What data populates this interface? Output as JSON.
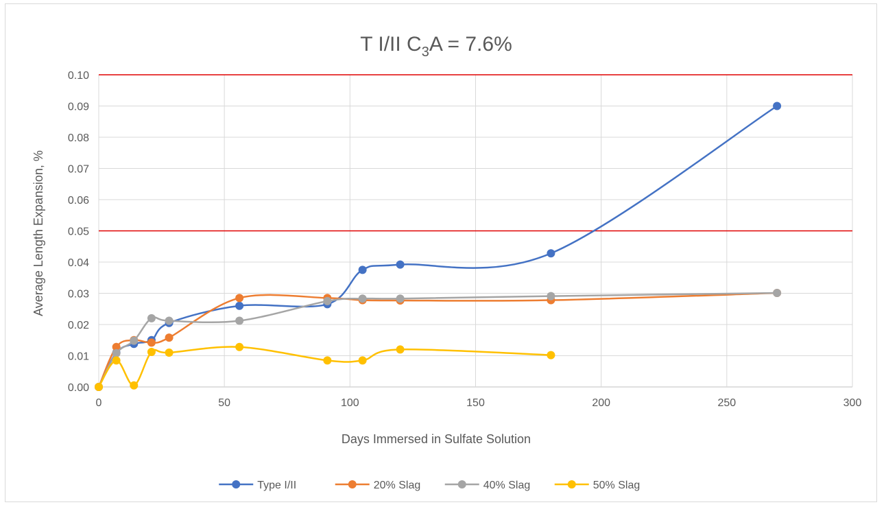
{
  "chart_data": {
    "type": "line",
    "title": "T I/II  C",
    "title_subscript": "3",
    "title_suffix": "A = 7.6%",
    "xlabel": "Days Immersed in Sulfate Solution",
    "ylabel": "Average Length Expansion, %",
    "xlim": [
      0,
      300
    ],
    "ylim": [
      0,
      0.1
    ],
    "xticks": [
      "0",
      "50",
      "100",
      "150",
      "200",
      "250",
      "300"
    ],
    "yticks": [
      "0.00",
      "0.01",
      "0.02",
      "0.03",
      "0.04",
      "0.05",
      "0.06",
      "0.07",
      "0.08",
      "0.09",
      "0.10"
    ],
    "grid": true,
    "smooth": true,
    "legend_position": "bottom",
    "limit_lines": [
      {
        "y": 0.1,
        "color": "#e00000"
      },
      {
        "y": 0.05,
        "color": "#e00000"
      }
    ],
    "series": [
      {
        "name": "Type I/II",
        "color": "#4472c4",
        "x": [
          0,
          7,
          14,
          21,
          28,
          56,
          91,
          105,
          120,
          180,
          270
        ],
        "y": [
          0.0,
          0.011,
          0.0138,
          0.015,
          0.0205,
          0.026,
          0.0265,
          0.0375,
          0.0392,
          0.0428,
          0.09
        ]
      },
      {
        "name": "20% Slag",
        "color": "#ed7d31",
        "x": [
          0,
          7,
          14,
          21,
          28,
          56,
          91,
          105,
          120,
          180,
          270
        ],
        "y": [
          0.0,
          0.0128,
          0.015,
          0.0142,
          0.0158,
          0.0285,
          0.0285,
          0.0278,
          0.0277,
          0.0278,
          0.0301
        ]
      },
      {
        "name": "40% Slag",
        "color": "#a5a5a5",
        "x": [
          0,
          7,
          14,
          21,
          28,
          56,
          91,
          105,
          120,
          180,
          270
        ],
        "y": [
          0.0,
          0.0108,
          0.0148,
          0.022,
          0.0212,
          0.0212,
          0.0275,
          0.0283,
          0.0283,
          0.0291,
          0.0301
        ]
      },
      {
        "name": "50% Slag",
        "color": "#ffc000",
        "x": [
          0,
          7,
          14,
          21,
          28,
          56,
          91,
          105,
          120,
          180
        ],
        "y": [
          0.0,
          0.0085,
          0.0005,
          0.0112,
          0.011,
          0.0128,
          0.0085,
          0.0085,
          0.012,
          0.0102
        ]
      }
    ]
  }
}
